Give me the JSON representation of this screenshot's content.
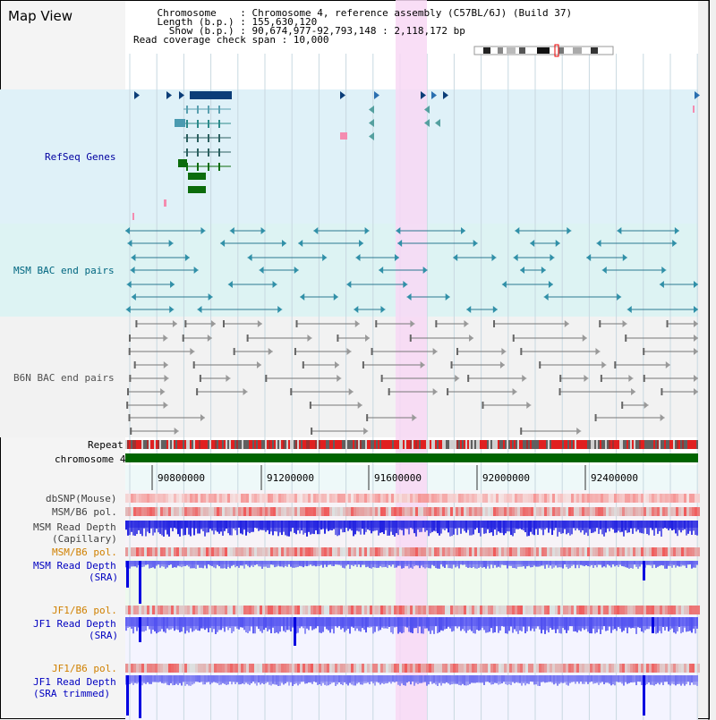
{
  "page": {
    "title": "Map View"
  },
  "header": {
    "chromosome_line": "    Chromosome    : Chromosome 4, reference assembly (C57BL/6J) (Build 37)",
    "length_line": "    Length (b.p.) : 155,630,120",
    "show_line": "      Show (b.p.) : 90,674,977-92,793,148 : 2,118,172 bp",
    "coverage_line": "Read coverage check span : 10,000"
  },
  "tracks": {
    "refseq_label": "RefSeq Genes",
    "msm_bac_label": "MSM BAC end pairs",
    "b6n_bac_label": "B6N BAC end pairs",
    "repeat_label": "Repeat",
    "chromosome_label": "chromosome 4",
    "dbsnp_label": "dbSNP(Mouse)",
    "msm_b6_pol_label": "MSM/B6 pol.",
    "msm_depth_cap_label1": "MSM Read Depth",
    "msm_depth_cap_label2": "(Capillary)",
    "msm_b6_pol2_label": "MSM/B6 pol.",
    "msm_depth_sra_label1": "MSM Read Depth",
    "msm_depth_sra_label2": "(SRA)",
    "jf1_b6_pol_label": "JF1/B6 pol.",
    "jf1_depth_sra_label1": "JF1 Read Depth",
    "jf1_depth_sra_label2": "(SRA)",
    "jf1_b6_pol2_label": "JF1/B6 pol.",
    "jf1_depth_trim_label1": "JF1 Read Depth",
    "jf1_depth_trim_label2": "(SRA trimmed)"
  },
  "axis": {
    "ticks": [
      "90800000",
      "91200000",
      "91600000",
      "92000000",
      "92400000"
    ]
  },
  "colors": {
    "refseq_bg": "#dff1f8",
    "msm_bac_bg": "#ddf3f3",
    "highlight": "#f8d8f4",
    "chromosome": "#006400",
    "label_blue": "#0000a0",
    "label_teal": "#006680",
    "label_gray": "#505050",
    "label_orange": "#d08000"
  }
}
